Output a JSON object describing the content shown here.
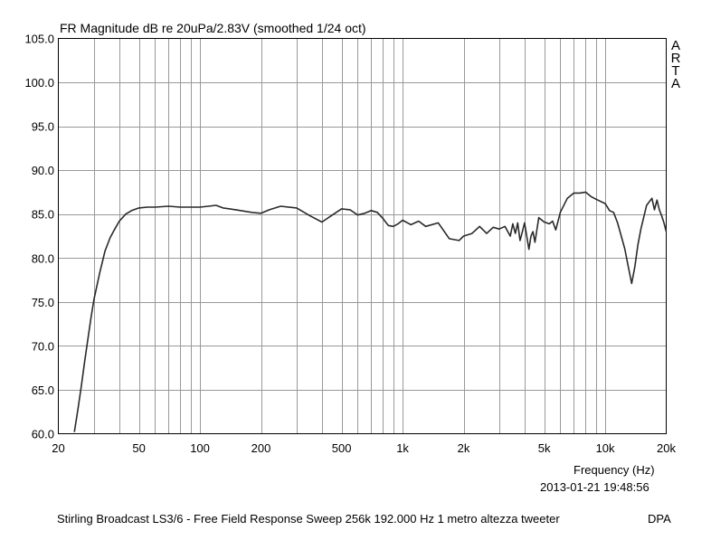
{
  "chart_data": {
    "type": "line",
    "title": "FR Magnitude dB re 20uPa/2.83V (smoothed 1/24 oct)",
    "xlabel": "Frequency (Hz)",
    "ylabel": "",
    "x_scale": "log",
    "xlim": [
      20,
      20000
    ],
    "ylim": [
      60,
      105
    ],
    "grid": true,
    "x_ticks": [
      {
        "value": 20,
        "label": "20"
      },
      {
        "value": 50,
        "label": "50"
      },
      {
        "value": 100,
        "label": "100"
      },
      {
        "value": 200,
        "label": "200"
      },
      {
        "value": 500,
        "label": "500"
      },
      {
        "value": 1000,
        "label": "1k"
      },
      {
        "value": 2000,
        "label": "2k"
      },
      {
        "value": 5000,
        "label": "5k"
      },
      {
        "value": 10000,
        "label": "10k"
      },
      {
        "value": 20000,
        "label": "20k"
      }
    ],
    "y_ticks": [
      {
        "value": 105,
        "label": "105.0"
      },
      {
        "value": 100,
        "label": "100.0"
      },
      {
        "value": 95,
        "label": "95.0"
      },
      {
        "value": 90,
        "label": "90.0"
      },
      {
        "value": 85,
        "label": "85.0"
      },
      {
        "value": 80,
        "label": "80.0"
      },
      {
        "value": 75,
        "label": "75.0"
      },
      {
        "value": 70,
        "label": "70.0"
      },
      {
        "value": 65,
        "label": "65.0"
      },
      {
        "value": 60,
        "label": "60.0"
      }
    ],
    "series": [
      {
        "name": "",
        "x": [
          24,
          25,
          26,
          27,
          28,
          29,
          30,
          32,
          34,
          36,
          38,
          40,
          43,
          46,
          50,
          55,
          60,
          70,
          80,
          90,
          100,
          110,
          120,
          130,
          150,
          180,
          200,
          220,
          250,
          300,
          350,
          400,
          450,
          500,
          550,
          600,
          650,
          700,
          750,
          800,
          850,
          900,
          950,
          1000,
          1100,
          1200,
          1300,
          1500,
          1700,
          1900,
          2000,
          2200,
          2400,
          2600,
          2800,
          3000,
          3200,
          3400,
          3500,
          3600,
          3700,
          3800,
          3900,
          4000,
          4200,
          4300,
          4400,
          4500,
          4700,
          5000,
          5300,
          5500,
          5700,
          6000,
          6500,
          7000,
          7500,
          8000,
          8500,
          9000,
          10000,
          10500,
          11000,
          11500,
          12000,
          12500,
          13000,
          13500,
          14000,
          14500,
          15000,
          16000,
          17000,
          17500,
          18000,
          18500,
          19000,
          19500,
          20000
        ],
        "values": [
          60.2,
          62.8,
          65.5,
          68.3,
          70.8,
          73.2,
          75.3,
          78.3,
          80.8,
          82.3,
          83.3,
          84.2,
          85.0,
          85.4,
          85.7,
          85.8,
          85.8,
          85.9,
          85.8,
          85.8,
          85.8,
          85.9,
          86.0,
          85.7,
          85.5,
          85.2,
          85.1,
          85.5,
          85.9,
          85.7,
          84.8,
          84.1,
          84.9,
          85.6,
          85.5,
          84.9,
          85.1,
          85.4,
          85.2,
          84.5,
          83.7,
          83.6,
          83.9,
          84.3,
          83.8,
          84.2,
          83.6,
          84.0,
          82.2,
          82.0,
          82.5,
          82.8,
          83.6,
          82.8,
          83.5,
          83.3,
          83.6,
          82.5,
          83.9,
          82.8,
          84.0,
          82.0,
          83.0,
          84.0,
          81.0,
          82.5,
          83.0,
          81.8,
          84.6,
          84.1,
          83.9,
          84.2,
          83.2,
          85.2,
          86.8,
          87.4,
          87.4,
          87.5,
          87.0,
          86.7,
          86.2,
          85.4,
          85.2,
          84.0,
          82.5,
          81.0,
          79.0,
          77.1,
          79.0,
          81.5,
          83.3,
          86.0,
          86.8,
          85.5,
          86.6,
          85.5,
          84.8,
          84.0,
          83.0
        ]
      }
    ]
  },
  "watermark": "ARTA",
  "timestamp": "2013-01-21  19:48:56",
  "footer": {
    "caption": "Stirling Broadcast LS3/6 - Free Field Response Sweep 256k 192.000  Hz 1 metro altezza tweeter",
    "tag": "DPA"
  }
}
